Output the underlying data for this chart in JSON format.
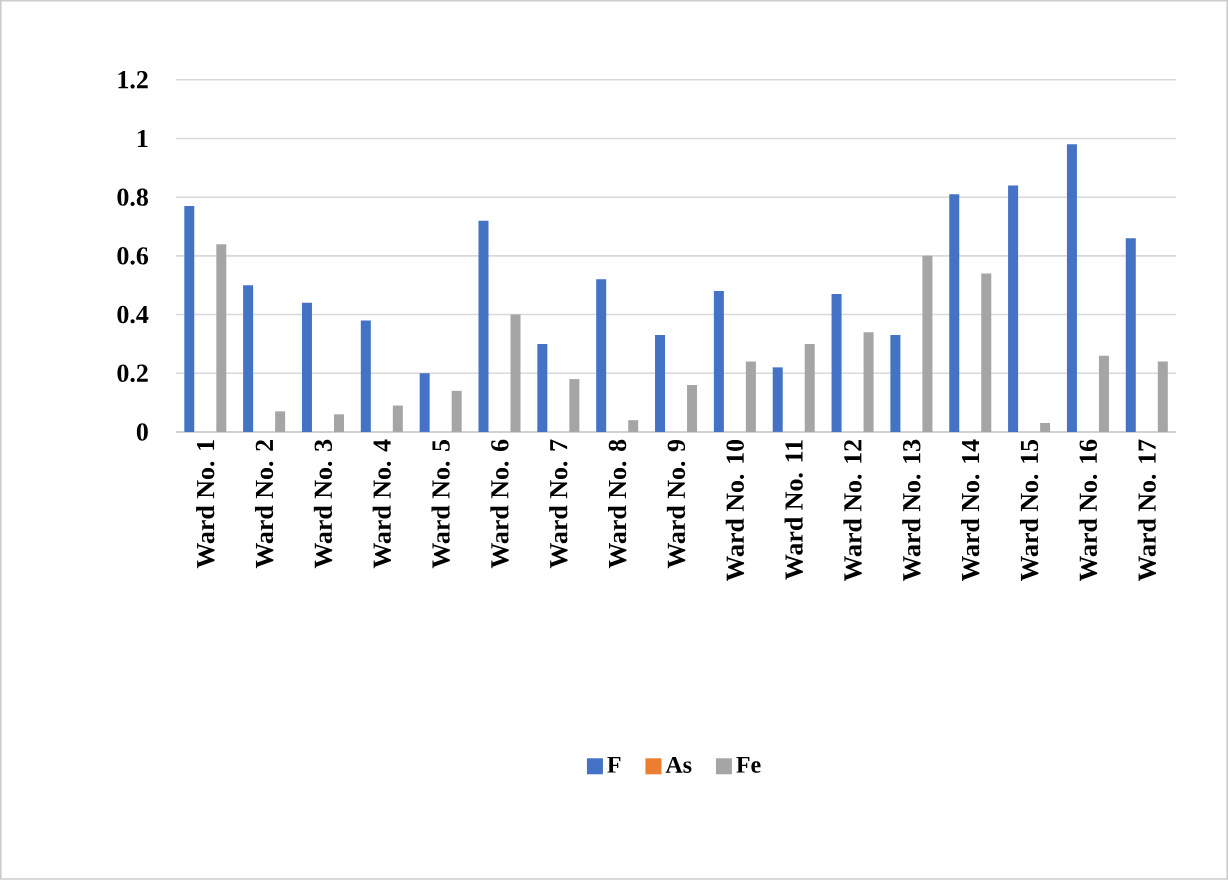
{
  "chart_data": {
    "type": "bar",
    "categories": [
      "Ward No. 1",
      "Ward No. 2",
      "Ward No. 3",
      "Ward No. 4",
      "Ward No. 5",
      "Ward No. 6",
      "Ward No. 7",
      "Ward No. 8",
      "Ward No. 9",
      "Ward No. 10",
      "Ward No. 11",
      "Ward No. 12",
      "Ward No. 13",
      "Ward No. 14",
      "Ward No. 15",
      "Ward No. 16",
      "Ward No. 17"
    ],
    "series": [
      {
        "name": "F",
        "color": "#4472c4",
        "values": [
          0.77,
          0.5,
          0.44,
          0.38,
          0.2,
          0.72,
          0.3,
          0.52,
          0.33,
          0.48,
          0.22,
          0.47,
          0.33,
          0.81,
          0.84,
          0.98,
          0.66
        ]
      },
      {
        "name": "As",
        "color": "#ed7d31",
        "values": [
          0,
          0,
          0,
          0,
          0,
          0,
          0,
          0,
          0,
          0,
          0,
          0,
          0,
          0,
          0,
          0,
          0
        ]
      },
      {
        "name": "Fe",
        "color": "#a5a5a5",
        "values": [
          0.64,
          0.07,
          0.06,
          0.09,
          0.14,
          0.4,
          0.18,
          0.04,
          0.16,
          0.24,
          0.3,
          0.34,
          0.6,
          0.54,
          0.03,
          0.26,
          0.24
        ]
      }
    ],
    "ylim": [
      0,
      1.2
    ],
    "yticks": [
      0,
      0.2,
      0.4,
      0.6,
      0.8,
      1,
      1.2
    ],
    "grid": "y",
    "legend": "bottom"
  }
}
